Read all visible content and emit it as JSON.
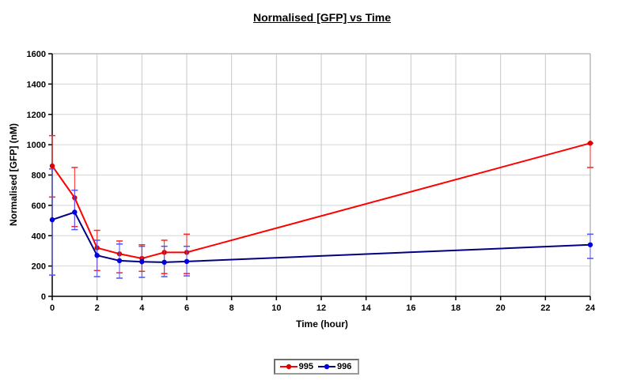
{
  "chart_data": {
    "type": "line",
    "title": "Normalised [GFP] vs Time",
    "xlabel": "Time (hour)",
    "ylabel": "Normalised [GFP] (nM)",
    "xlim": [
      0,
      24
    ],
    "ylim": [
      0,
      1600
    ],
    "xticks": [
      0,
      2,
      4,
      6,
      8,
      10,
      12,
      14,
      16,
      18,
      20,
      22,
      24
    ],
    "yticks": [
      0,
      200,
      400,
      600,
      800,
      1000,
      1200,
      1400,
      1600
    ],
    "grid": true,
    "legend_position": "bottom-center",
    "x": [
      0,
      1,
      2,
      3,
      4,
      5,
      6,
      24
    ],
    "series": [
      {
        "name": "995",
        "color": "#ff0000",
        "marker_color": "#e00000",
        "ebar_color": "#ff2222",
        "values": [
          860,
          650,
          320,
          280,
          250,
          290,
          290,
          1010
        ],
        "ebar_low": [
          655,
          460,
          170,
          155,
          165,
          150,
          150,
          850
        ],
        "ebar_high": [
          1060,
          850,
          435,
          365,
          340,
          370,
          410,
          1010
        ]
      },
      {
        "name": "996",
        "color": "#000080",
        "marker_color": "#0000e0",
        "ebar_color": "#5050ff",
        "values": [
          505,
          555,
          270,
          235,
          228,
          225,
          230,
          340
        ],
        "ebar_low": [
          140,
          440,
          130,
          120,
          125,
          130,
          135,
          250
        ],
        "ebar_high": [
          840,
          700,
          370,
          345,
          330,
          330,
          330,
          410
        ]
      }
    ],
    "colors": {
      "axis": "#000000",
      "grid_vertical": "#c6c6c6",
      "grid_horizontal": "#d4d4d4",
      "plot_border": "#9a9a9a",
      "background": "#ffffff"
    }
  }
}
